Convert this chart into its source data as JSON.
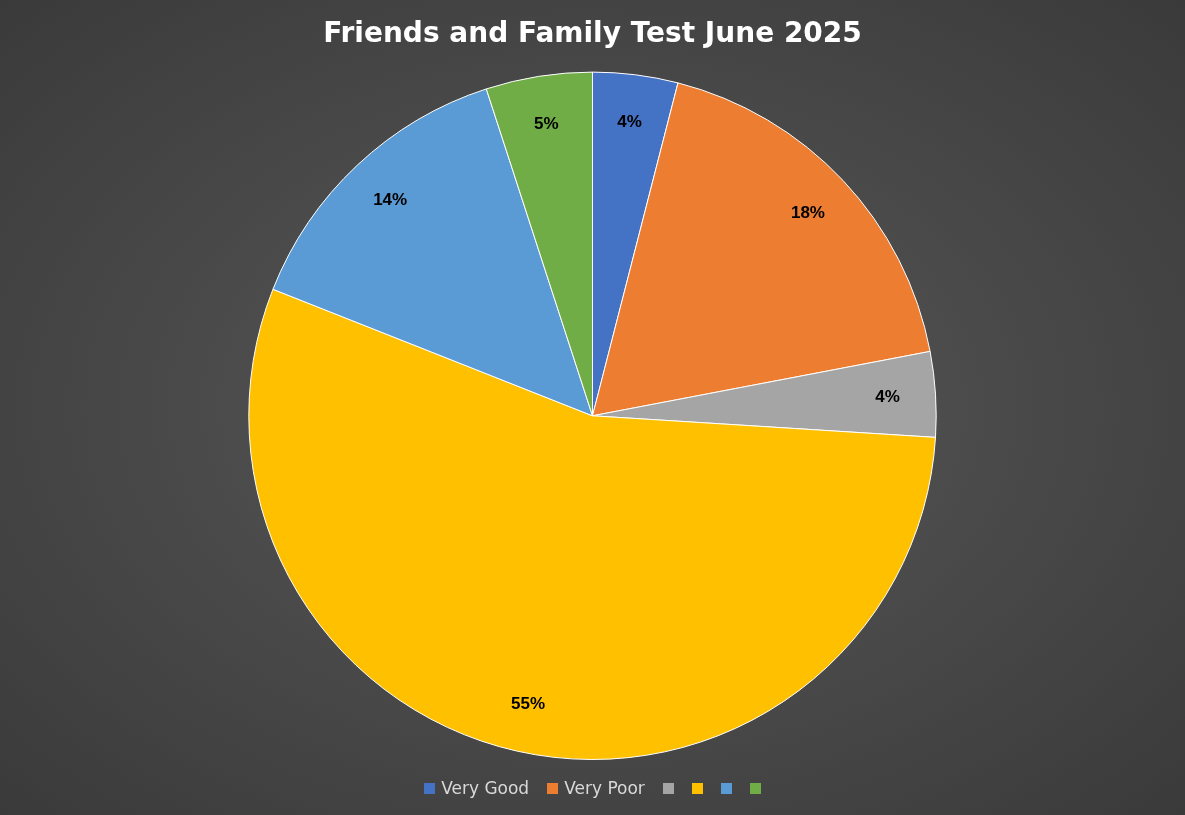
{
  "chart_data": {
    "type": "pie",
    "title": "Friends and Family Test June 2025",
    "categories": [
      "Very Good",
      "Very Poor",
      null,
      null,
      null,
      null
    ],
    "values": [
      4,
      18,
      4,
      55,
      14,
      5
    ],
    "colors": [
      "#4472c4",
      "#ed7d31",
      "#a5a5a5",
      "#ffc000",
      "#5b9bd5",
      "#70ad47"
    ],
    "value_labels": [
      "4%",
      "18%",
      "4%",
      "55%",
      "14%",
      "5%"
    ],
    "legend": "bottom"
  }
}
